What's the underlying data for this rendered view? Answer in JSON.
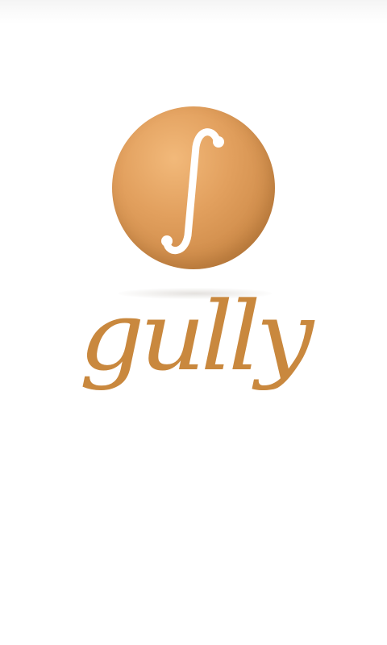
{
  "splash": {
    "brand_name": "gully",
    "logo_glyph": "∫",
    "logo_icon": "integral-sign-orb-icon"
  },
  "colors": {
    "brand": "#c9883e",
    "orb_light": "#f2b97a",
    "orb_dark": "#b8783a",
    "background": "#ffffff"
  }
}
